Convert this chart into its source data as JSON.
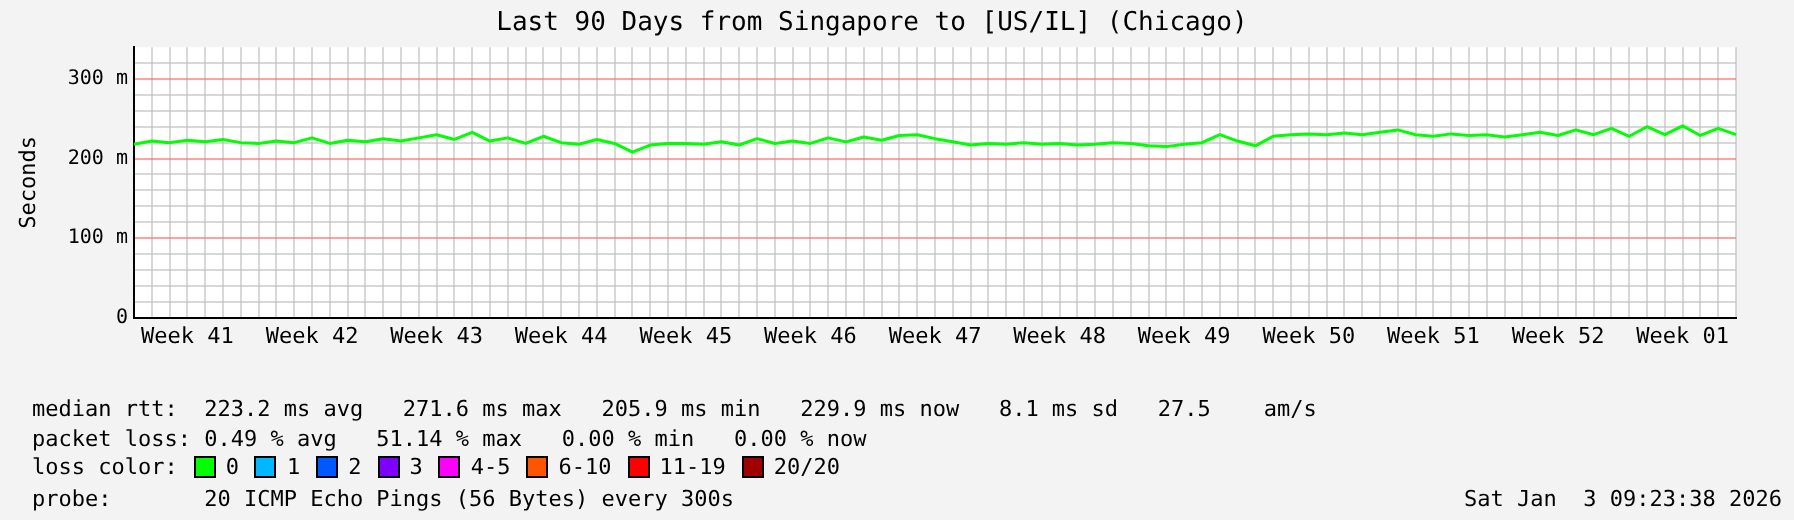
{
  "chart_data": {
    "type": "line",
    "title": "Last 90 Days from Singapore to [US/IL] (Chicago)",
    "ylabel": "Seconds",
    "categories": [
      null,
      null,
      null,
      "Week 41",
      null,
      null,
      null,
      null,
      null,
      null,
      "Week 42",
      null,
      null,
      null,
      null,
      null,
      null,
      "Week 43",
      null,
      null,
      null,
      null,
      null,
      null,
      "Week 44",
      null,
      null,
      null,
      null,
      null,
      null,
      "Week 45",
      null,
      null,
      null,
      null,
      null,
      null,
      "Week 46",
      null,
      null,
      null,
      null,
      null,
      null,
      "Week 47",
      null,
      null,
      null,
      null,
      null,
      null,
      "Week 48",
      null,
      null,
      null,
      null,
      null,
      null,
      "Week 49",
      null,
      null,
      null,
      null,
      null,
      null,
      "Week 50",
      null,
      null,
      null,
      null,
      null,
      null,
      "Week 51",
      null,
      null,
      null,
      null,
      null,
      null,
      "Week 52",
      null,
      null,
      null,
      null,
      null,
      null,
      "Week 01",
      null,
      null,
      null
    ],
    "series": [
      {
        "color": "#00ff00",
        "values": [
          218,
          222,
          220,
          223,
          221,
          224,
          220,
          219,
          222,
          220,
          226,
          219,
          223,
          221,
          225,
          222,
          226,
          230,
          224,
          233,
          222,
          226,
          219,
          228,
          220,
          218,
          224,
          219,
          208,
          217,
          219,
          219,
          218,
          221,
          217,
          225,
          219,
          222,
          219,
          226,
          221,
          227,
          223,
          229,
          230,
          225,
          221,
          217,
          219,
          218,
          220,
          218,
          219,
          217,
          218,
          220,
          219,
          216,
          215,
          218,
          220,
          230,
          222,
          216,
          228,
          230,
          231,
          230,
          232,
          230,
          233,
          236,
          230,
          228,
          231,
          229,
          230,
          227,
          230,
          233,
          229,
          236,
          230,
          238,
          228,
          240,
          230,
          241,
          229,
          238,
          230
        ]
      }
    ],
    "ylim": [
      0,
      340
    ],
    "yticks": [
      {
        "value": 0,
        "label": "0"
      },
      {
        "value": 20,
        "label": null
      },
      {
        "value": 40,
        "label": null
      },
      {
        "value": 60,
        "label": null
      },
      {
        "value": 80,
        "label": null
      },
      {
        "value": 100,
        "label": "100 m"
      },
      {
        "value": 120,
        "label": null
      },
      {
        "value": 140,
        "label": null
      },
      {
        "value": 160,
        "label": null
      },
      {
        "value": 180,
        "label": null
      },
      {
        "value": 200,
        "label": "200 m"
      },
      {
        "value": 220,
        "label": null
      },
      {
        "value": 240,
        "label": null
      },
      {
        "value": 260,
        "label": null
      },
      {
        "value": 280,
        "label": null
      },
      {
        "value": 300,
        "label": "300 m"
      },
      {
        "value": 320,
        "label": null
      }
    ],
    "grid": true,
    "marker": "none",
    "line_style": "solid",
    "annotations": [
      "median rtt:  223.2 ms avg   271.6 ms max   205.9 ms min   229.9 ms now   8.1 ms sd   27.5    am/s",
      "packet loss: 0.49 % avg   51.14 % max   0.00 % min   0.00 % now",
      "loss color:",
      "0",
      "1",
      "2",
      "3",
      "4-5",
      "6-10",
      "11-19",
      "20/20",
      "probe:       20 ICMP Echo Pings (56 Bytes) every 300s",
      "Sat Jan  3 09:23:38 2026"
    ]
  }
}
